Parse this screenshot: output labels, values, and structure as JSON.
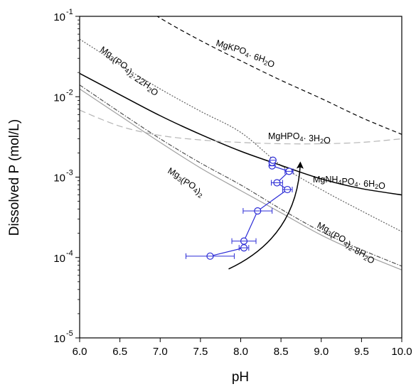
{
  "chart_data": {
    "type": "line",
    "xlabel": "pH",
    "ylabel": "Dissolved P (mol/L)",
    "xlim": [
      6.0,
      10.0
    ],
    "ylim": [
      1e-05,
      0.1
    ],
    "yscale": "log",
    "grid": false,
    "x_ticks": [
      "6.0",
      "6.5",
      "7.0",
      "7.5",
      "8.0",
      "8.5",
      "9.0",
      "9.5",
      "10.0"
    ],
    "y_ticks": [
      {
        "base": "10",
        "exp": "-5"
      },
      {
        "base": "10",
        "exp": "-4"
      },
      {
        "base": "10",
        "exp": "-3"
      },
      {
        "base": "10",
        "exp": "-2"
      },
      {
        "base": "10",
        "exp": "-1"
      }
    ],
    "series": [
      {
        "name": "MgKPO4·6H2O",
        "color": "#000000",
        "dash": "short-dash",
        "x": [
          6.5,
          7.0,
          7.5,
          8.0,
          8.5,
          9.0,
          9.5,
          10.0
        ],
        "y": [
          0.2,
          0.095,
          0.05,
          0.028,
          0.016,
          0.0095,
          0.0055,
          0.0034
        ]
      },
      {
        "name": "Mg3(PO4)2·22H2O",
        "color": "#606060",
        "dash": "dot",
        "x": [
          6.0,
          6.5,
          7.0,
          7.5,
          8.0,
          8.5,
          9.0,
          9.5,
          10.0
        ],
        "y": [
          0.052,
          0.025,
          0.0125,
          0.0066,
          0.0036,
          0.0014,
          0.0007,
          0.00038,
          0.00021
        ]
      },
      {
        "name": "MgNH4PO4·6H2O",
        "color": "#000000",
        "dash": "solid",
        "x": [
          6.0,
          6.5,
          7.0,
          7.5,
          8.0,
          8.5,
          9.0,
          9.5,
          10.0
        ],
        "y": [
          0.0195,
          0.0106,
          0.0058,
          0.0034,
          0.0021,
          0.0014,
          0.00095,
          0.00072,
          0.0006
        ]
      },
      {
        "name": "MgHPO4·3H2O",
        "color": "#b5b5b5",
        "dash": "long-dash",
        "x": [
          6.0,
          6.5,
          7.0,
          7.5,
          8.0,
          8.5,
          9.0,
          9.5,
          10.0
        ],
        "y": [
          0.0068,
          0.0043,
          0.0033,
          0.0029,
          0.0027,
          0.0026,
          0.0026,
          0.0027,
          0.003
        ]
      },
      {
        "name": "Mg3(PO4)2·8H2O",
        "color": "#505050",
        "dash": "dash-dot",
        "x": [
          6.0,
          6.5,
          7.0,
          7.5,
          8.0,
          8.5,
          9.0,
          9.5,
          10.0
        ],
        "y": [
          0.014,
          0.0064,
          0.003,
          0.0015,
          0.0008,
          0.0004,
          0.00021,
          0.000125,
          7.8e-05
        ]
      },
      {
        "name": "Mg3(PO4)2",
        "color": "#a0a0a0",
        "dash": "solid",
        "x": [
          6.0,
          6.5,
          7.0,
          7.5,
          8.0,
          8.5,
          9.0,
          9.5,
          10.0
        ],
        "y": [
          0.0125,
          0.0058,
          0.0027,
          0.0013,
          0.00068,
          0.00036,
          0.00019,
          0.000112,
          7e-05
        ]
      }
    ],
    "measured_series": {
      "color": "#2b2bd6",
      "points": [
        {
          "x": 7.62,
          "y": 0.000104,
          "xerr": [
            0.3,
            0.3
          ]
        },
        {
          "x": 8.04,
          "y": 0.000132,
          "xerr": [
            0.06,
            0.06
          ]
        },
        {
          "x": 8.04,
          "y": 0.00016,
          "xerr": [
            0.15,
            0.15
          ]
        },
        {
          "x": 8.21,
          "y": 0.00038,
          "xerr": [
            0.18,
            0.18
          ]
        },
        {
          "x": 8.58,
          "y": 0.0007,
          "xerr": [
            0.06,
            0.06
          ]
        },
        {
          "x": 8.45,
          "y": 0.00085,
          "xerr": [
            0.07,
            0.07
          ]
        },
        {
          "x": 8.6,
          "y": 0.00118,
          "xerr": [
            0.05,
            0.05
          ]
        },
        {
          "x": 8.39,
          "y": 0.00138,
          "xerr": [
            0.02,
            0.02
          ]
        },
        {
          "x": 8.39,
          "y": 0.00152,
          "xerr": [
            0.02,
            0.02
          ]
        },
        {
          "x": 8.4,
          "y": 0.00162,
          "xerr": [
            0.02,
            0.02
          ]
        }
      ]
    },
    "arrow": {
      "from": {
        "x": 7.85,
        "y": 7.2e-05
      },
      "via": {
        "x": 8.7,
        "y": 0.00018
      },
      "to": {
        "x": 8.74,
        "y": 0.0015
      }
    },
    "annotations": [
      {
        "key": "mgkpo4",
        "parts": [
          {
            "t": "MgKPO"
          },
          {
            "t": "4",
            "s": "sub"
          },
          {
            "t": "· 6H"
          },
          {
            "t": "2",
            "s": "sub"
          },
          {
            "t": "O"
          }
        ]
      },
      {
        "key": "mg3po4_22",
        "parts": [
          {
            "t": "Mg"
          },
          {
            "t": "3",
            "s": "sub"
          },
          {
            "t": "(PO"
          },
          {
            "t": "4",
            "s": "sub"
          },
          {
            "t": ")"
          },
          {
            "t": "2",
            "s": "sub"
          },
          {
            "t": "·22H"
          },
          {
            "t": "2",
            "s": "sub"
          },
          {
            "t": "O"
          }
        ]
      },
      {
        "key": "mghpo4",
        "parts": [
          {
            "t": "MgHPO"
          },
          {
            "t": "4",
            "s": "sub"
          },
          {
            "t": "· 3H"
          },
          {
            "t": "2",
            "s": "sub"
          },
          {
            "t": "O"
          }
        ]
      },
      {
        "key": "mg3po4",
        "parts": [
          {
            "t": "Mg"
          },
          {
            "t": "3",
            "s": "sub"
          },
          {
            "t": "(PO"
          },
          {
            "t": "4",
            "s": "sub"
          },
          {
            "t": ")"
          },
          {
            "t": "2",
            "s": "sub"
          }
        ]
      },
      {
        "key": "struvite",
        "parts": [
          {
            "t": "MgNH"
          },
          {
            "t": "4",
            "s": "sub"
          },
          {
            "t": "PO"
          },
          {
            "t": "4",
            "s": "sub"
          },
          {
            "t": "· 6H"
          },
          {
            "t": "2",
            "s": "sub"
          },
          {
            "t": "O"
          }
        ]
      },
      {
        "key": "mg3po4_8",
        "parts": [
          {
            "t": "Mg"
          },
          {
            "t": "3",
            "s": "sub"
          },
          {
            "t": "(PO"
          },
          {
            "t": "4",
            "s": "sub"
          },
          {
            "t": ")"
          },
          {
            "t": "2",
            "s": "sub"
          },
          {
            "t": "·8H"
          },
          {
            "t": "2",
            "s": "sub"
          },
          {
            "t": "O"
          }
        ]
      }
    ]
  }
}
